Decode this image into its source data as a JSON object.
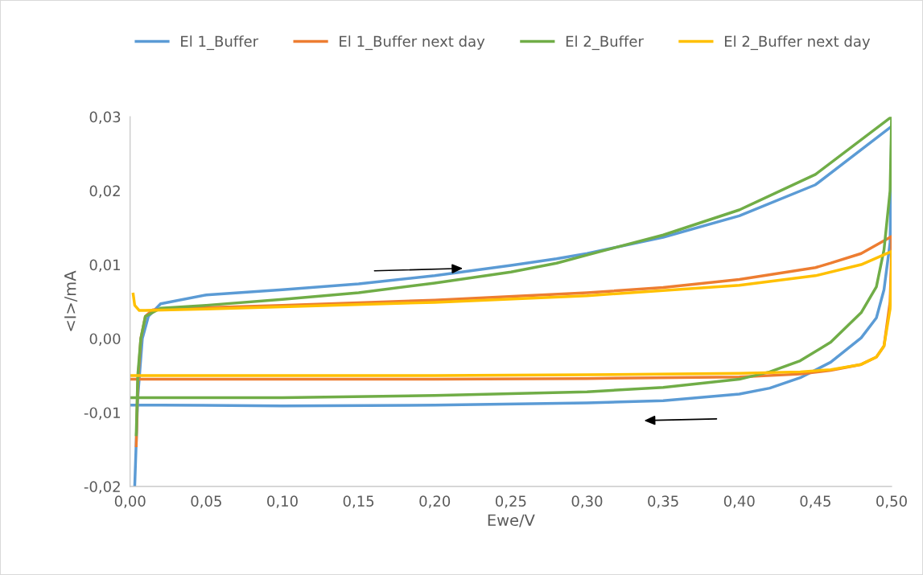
{
  "chart_data": {
    "type": "line",
    "xlabel": "Ewe/V",
    "ylabel": "<I>/mA",
    "xlim": [
      0,
      0.5
    ],
    "ylim": [
      -0.02,
      0.03
    ],
    "xticks": [
      {
        "value": 0,
        "label": "0,00"
      },
      {
        "value": 0.05,
        "label": "0,05"
      },
      {
        "value": 0.1,
        "label": "0,10"
      },
      {
        "value": 0.15,
        "label": "0,15"
      },
      {
        "value": 0.2,
        "label": "0,20"
      },
      {
        "value": 0.25,
        "label": "0,25"
      },
      {
        "value": 0.3,
        "label": "0,30"
      },
      {
        "value": 0.35,
        "label": "0,35"
      },
      {
        "value": 0.4,
        "label": "0,40"
      },
      {
        "value": 0.45,
        "label": "0,45"
      },
      {
        "value": 0.5,
        "label": "0,50"
      }
    ],
    "yticks": [
      {
        "value": -0.02,
        "label": "-0,02"
      },
      {
        "value": -0.01,
        "label": "-0,01"
      },
      {
        "value": 0,
        "label": "0,00"
      },
      {
        "value": 0.01,
        "label": "0,01"
      },
      {
        "value": 0.02,
        "label": "0,02"
      },
      {
        "value": 0.03,
        "label": "0,03"
      }
    ],
    "grid": false,
    "legend": "top",
    "marker": "none",
    "line_style": "solid",
    "series": [
      {
        "name": "El 1_Buffer",
        "color": "#5b9bd5",
        "x": [
          0.003,
          0.005,
          0.008,
          0.012,
          0.02,
          0.05,
          0.1,
          0.15,
          0.2,
          0.25,
          0.28,
          0.3,
          0.35,
          0.4,
          0.45,
          0.5,
          0.499,
          0.495,
          0.49,
          0.48,
          0.46,
          0.44,
          0.42,
          0.4,
          0.35,
          0.3,
          0.2,
          0.1,
          0.02,
          0.0
        ],
        "values": [
          -0.02,
          -0.008,
          0.0,
          0.003,
          0.0047,
          0.0059,
          0.0066,
          0.0074,
          0.0085,
          0.0099,
          0.0108,
          0.0115,
          0.0137,
          0.0166,
          0.0208,
          0.0287,
          0.013,
          0.0066,
          0.0028,
          0.0001,
          -0.0032,
          -0.0053,
          -0.0067,
          -0.0075,
          -0.0084,
          -0.0087,
          -0.009,
          -0.0091,
          -0.009,
          -0.009
        ]
      },
      {
        "name": "El 1_Buffer next day",
        "color": "#ed7d31",
        "x": [
          0.004,
          0.005,
          0.007,
          0.01,
          0.015,
          0.05,
          0.1,
          0.2,
          0.3,
          0.35,
          0.4,
          0.45,
          0.46,
          0.48,
          0.5,
          0.5,
          0.499,
          0.495,
          0.49,
          0.48,
          0.46,
          0.44,
          0.4,
          0.3,
          0.2,
          0.1,
          0.0
        ],
        "values": [
          -0.0145,
          -0.006,
          0.0,
          0.003,
          0.0039,
          0.0042,
          0.0045,
          0.0052,
          0.0062,
          0.0069,
          0.008,
          0.0096,
          0.0102,
          0.0115,
          0.0138,
          0.012,
          0.005,
          -0.001,
          -0.0025,
          -0.0035,
          -0.0043,
          -0.0048,
          -0.0052,
          -0.0054,
          -0.0055,
          -0.0055,
          -0.0055
        ]
      },
      {
        "name": "El 2_Buffer",
        "color": "#70ad47",
        "x": [
          0.004,
          0.005,
          0.007,
          0.01,
          0.02,
          0.05,
          0.1,
          0.15,
          0.2,
          0.25,
          0.28,
          0.3,
          0.35,
          0.4,
          0.45,
          0.5,
          0.499,
          0.495,
          0.49,
          0.48,
          0.46,
          0.44,
          0.42,
          0.4,
          0.35,
          0.3,
          0.2,
          0.1,
          0.02,
          0.0
        ],
        "values": [
          -0.013,
          -0.005,
          0.0,
          0.003,
          0.0041,
          0.0045,
          0.0053,
          0.0062,
          0.0075,
          0.009,
          0.0102,
          0.0113,
          0.014,
          0.0174,
          0.0222,
          0.03,
          0.02,
          0.012,
          0.007,
          0.0035,
          -0.0005,
          -0.003,
          -0.0045,
          -0.0055,
          -0.0066,
          -0.0072,
          -0.0077,
          -0.008,
          -0.008,
          -0.008
        ]
      },
      {
        "name": "El 2_Buffer next day",
        "color": "#ffc000",
        "x": [
          0.002,
          0.003,
          0.006,
          0.01,
          0.05,
          0.1,
          0.2,
          0.3,
          0.4,
          0.45,
          0.48,
          0.5,
          0.5,
          0.499,
          0.495,
          0.49,
          0.48,
          0.46,
          0.44,
          0.4,
          0.3,
          0.2,
          0.1,
          0.0
        ],
        "values": [
          0.006,
          0.0045,
          0.0038,
          0.0038,
          0.004,
          0.0043,
          0.0049,
          0.0058,
          0.0072,
          0.0085,
          0.01,
          0.0118,
          0.01,
          0.004,
          -0.001,
          -0.0025,
          -0.0035,
          -0.0042,
          -0.0045,
          -0.0047,
          -0.0049,
          -0.005,
          -0.005,
          -0.005
        ]
      }
    ]
  }
}
